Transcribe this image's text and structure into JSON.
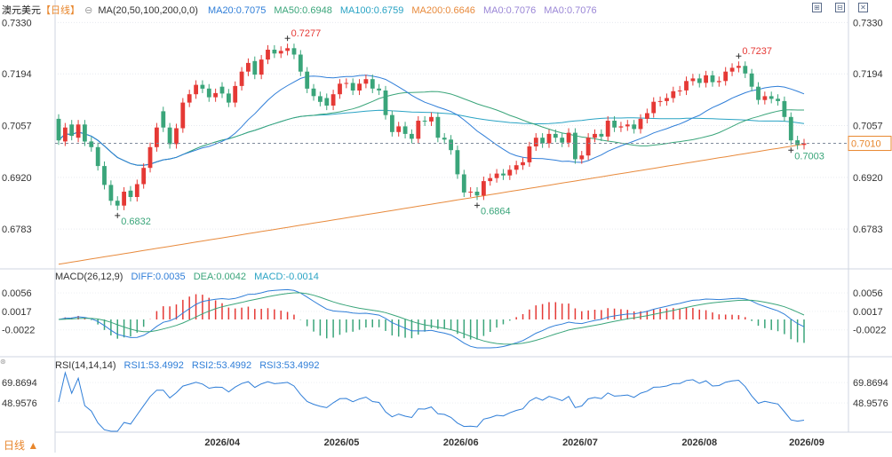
{
  "header": {
    "symbol": "澳元美元",
    "period_tag": "【日线】",
    "ma_label": "MA(20,50,100,200,0,0)",
    "ma_values": [
      {
        "label": "MA20:0.7075",
        "color": "#2f7ed8"
      },
      {
        "label": "MA50:0.6948",
        "color": "#3aa57a"
      },
      {
        "label": "MA100:0.6759",
        "color": "#29a3c4"
      },
      {
        "label": "MA200:0.6646",
        "color": "#e88a3c"
      },
      {
        "label": "MA0:0.7076",
        "color": "#9a86d6"
      },
      {
        "label": "MA0:0.7076",
        "color": "#9a86d6"
      }
    ]
  },
  "macd_header": {
    "label": "MACD(26,12,9)",
    "diff": "DIFF:0.0035",
    "dea": "DEA:0.0042",
    "macd": "MACD:-0.0014"
  },
  "rsi_header": {
    "label": "RSI(14,14,14)",
    "rsi1": "RSI1:53.4992",
    "rsi2": "RSI2:53.4992",
    "rsi3": "RSI3:53.4992"
  },
  "footer": {
    "period_button": "日线 ▲"
  },
  "colors": {
    "up": "#e53935",
    "down": "#3aa57a",
    "macd_diff": "#2f7ed8",
    "macd_dea": "#3aa57a",
    "rsi": "#2f7ed8",
    "ma200": "#e88a3c"
  },
  "chart_data": [
    {
      "type": "candlestick",
      "title": "澳元美元",
      "y_ticks": [
        "0.7330",
        "0.7194",
        "0.7057",
        "0.6920",
        "0.6783"
      ],
      "ylim": [
        0.668,
        0.7352
      ],
      "x_ticks": [
        "2026/04",
        "2026/05",
        "2026/06",
        "2026/07",
        "2026/08",
        "2026/09"
      ],
      "last_price": "0.7010",
      "annotations": [
        {
          "text": "0.7277",
          "kind": "high"
        },
        {
          "text": "0.6832",
          "kind": "low"
        },
        {
          "text": "0.6864",
          "kind": "low"
        },
        {
          "text": "0.7237",
          "kind": "high"
        },
        {
          "text": "0.7003",
          "kind": "low"
        }
      ],
      "closes": [
        0.7018,
        0.7052,
        0.703,
        0.706,
        0.7015,
        0.7,
        0.695,
        0.69,
        0.6858,
        0.6845,
        0.6882,
        0.6868,
        0.6902,
        0.6945,
        0.7,
        0.7052,
        0.7052,
        0.7008,
        0.705,
        0.7118,
        0.714,
        0.7165,
        0.7155,
        0.7132,
        0.7143,
        0.7142,
        0.7118,
        0.7162,
        0.72,
        0.7223,
        0.7192,
        0.7232,
        0.7258,
        0.7248,
        0.7255,
        0.7262,
        0.7245,
        0.72,
        0.7155,
        0.7135,
        0.712,
        0.711,
        0.714,
        0.7168,
        0.717,
        0.715,
        0.7168,
        0.718,
        0.7155,
        0.715,
        0.7085,
        0.704,
        0.7055,
        0.7035,
        0.7022,
        0.707,
        0.7068,
        0.708,
        0.7025,
        0.702,
        0.6992,
        0.6928,
        0.688,
        0.6882,
        0.6872,
        0.691,
        0.6918,
        0.693,
        0.6925,
        0.694,
        0.6952,
        0.696,
        0.7002,
        0.7025,
        0.701,
        0.7035,
        0.7025,
        0.7012,
        0.7038,
        0.6968,
        0.6978,
        0.7025,
        0.7035,
        0.7028,
        0.707,
        0.7052,
        0.7055,
        0.706,
        0.7048,
        0.7075,
        0.709,
        0.712,
        0.7122,
        0.713,
        0.7148,
        0.715,
        0.7175,
        0.7182,
        0.717,
        0.719,
        0.7172,
        0.7175,
        0.72,
        0.721,
        0.7215,
        0.7195,
        0.716,
        0.7125,
        0.7135,
        0.7128,
        0.7122,
        0.708,
        0.7018,
        0.7006,
        0.701
      ],
      "opens": [
        0.7075,
        0.7015,
        0.706,
        0.7025,
        0.706,
        0.7015,
        0.7,
        0.695,
        0.69,
        0.6858,
        0.6845,
        0.6885,
        0.6868,
        0.6902,
        0.6945,
        0.7,
        0.7095,
        0.7052,
        0.7008,
        0.705,
        0.7118,
        0.714,
        0.7165,
        0.7155,
        0.7132,
        0.716,
        0.7142,
        0.7118,
        0.7162,
        0.72,
        0.7228,
        0.7192,
        0.7232,
        0.7258,
        0.7248,
        0.7255,
        0.7262,
        0.7245,
        0.72,
        0.7155,
        0.7135,
        0.713,
        0.711,
        0.714,
        0.7168,
        0.717,
        0.715,
        0.7168,
        0.718,
        0.7155,
        0.715,
        0.7085,
        0.704,
        0.7055,
        0.7035,
        0.7022,
        0.707,
        0.7068,
        0.708,
        0.7025,
        0.702,
        0.6992,
        0.6928,
        0.688,
        0.6882,
        0.6872,
        0.691,
        0.6918,
        0.693,
        0.6925,
        0.694,
        0.6952,
        0.696,
        0.7002,
        0.7025,
        0.701,
        0.7035,
        0.7025,
        0.7012,
        0.7038,
        0.6968,
        0.6978,
        0.7025,
        0.7035,
        0.7028,
        0.707,
        0.7052,
        0.7055,
        0.706,
        0.7048,
        0.7075,
        0.709,
        0.712,
        0.7122,
        0.713,
        0.7148,
        0.715,
        0.7175,
        0.7182,
        0.717,
        0.719,
        0.7172,
        0.7175,
        0.72,
        0.721,
        0.7215,
        0.7195,
        0.716,
        0.7125,
        0.7135,
        0.7128,
        0.7122,
        0.708,
        0.7018,
        0.7006
      ]
    },
    {
      "type": "line",
      "title": "MACD(26,12,9)",
      "y_ticks": [
        "0.0056",
        "0.0017",
        "-0.0022"
      ],
      "ylim": [
        -0.006,
        0.0075
      ]
    },
    {
      "type": "line",
      "title": "RSI(14,14,14)",
      "y_ticks": [
        "69.8694",
        "48.9576"
      ],
      "ylim": [
        20,
        80
      ]
    }
  ]
}
